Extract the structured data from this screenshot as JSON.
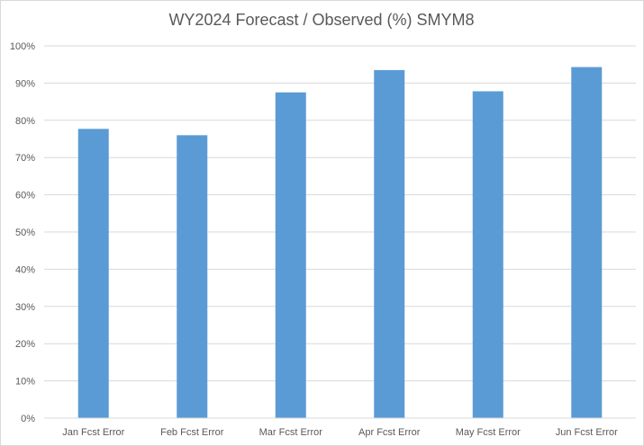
{
  "chart_data": {
    "type": "bar",
    "title": "WY2024 Forecast / Observed (%) SMYM8",
    "xlabel": "",
    "ylabel": "",
    "categories": [
      "Jan Fcst Error",
      "Feb Fcst Error",
      "Mar Fcst Error",
      "Apr Fcst Error",
      "May Fcst Error",
      "Jun Fcst Error"
    ],
    "values": [
      77.7,
      76.0,
      87.5,
      93.5,
      87.8,
      94.3
    ],
    "ylim": [
      0,
      100
    ],
    "yticks": [
      0,
      10,
      20,
      30,
      40,
      50,
      60,
      70,
      80,
      90,
      100
    ],
    "ytick_labels": [
      "0%",
      "10%",
      "20%",
      "30%",
      "40%",
      "50%",
      "60%",
      "70%",
      "80%",
      "90%",
      "100%"
    ],
    "grid": true,
    "legend": "none",
    "bar_color": "#5b9bd5",
    "grid_color": "#d9d9d9"
  }
}
